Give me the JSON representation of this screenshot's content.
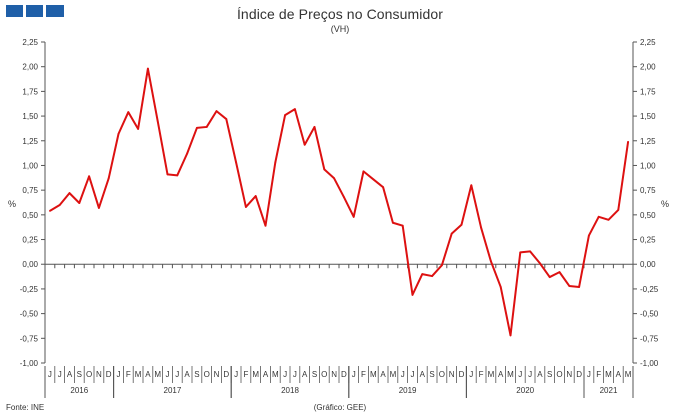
{
  "header": {
    "title": "Índice de Preços no Consumidor",
    "subtitle": "(VH)"
  },
  "footer": {
    "source": "Fonte: INE",
    "credit": "(Gráfico: GEE)"
  },
  "colors": {
    "line": "#dd1111",
    "logo": "#1f5fa8",
    "axis": "#555555"
  },
  "chart_data": {
    "type": "line",
    "title": "Índice de Preços no Consumidor",
    "subtitle": "(VH)",
    "ylabel": "%",
    "ylabel_right": "%",
    "ylim": [
      -1.0,
      2.25
    ],
    "ytick_step": 0.25,
    "yticks": [
      "-1,00",
      "-0,75",
      "-0,50",
      "-0,25",
      "0,00",
      "0,25",
      "0,50",
      "0,75",
      "1,00",
      "1,25",
      "1,50",
      "1,75",
      "2,00",
      "2,25"
    ],
    "grid": false,
    "legend": "none",
    "month_labels": [
      "J",
      "J",
      "A",
      "S",
      "O",
      "N",
      "D",
      "J",
      "F",
      "M",
      "A",
      "M",
      "J",
      "J",
      "A",
      "S",
      "O",
      "N",
      "D",
      "J",
      "F",
      "M",
      "A",
      "M",
      "J",
      "J",
      "A",
      "S",
      "O",
      "N",
      "D",
      "J",
      "F",
      "M",
      "A",
      "M",
      "J",
      "J",
      "A",
      "S",
      "O",
      "N",
      "D",
      "J",
      "F",
      "M",
      "A",
      "M",
      "J",
      "J",
      "A",
      "S",
      "O",
      "N",
      "D",
      "J",
      "F",
      "M",
      "A",
      "M"
    ],
    "years": [
      {
        "label": "2016",
        "start": 0,
        "end": 6
      },
      {
        "label": "2017",
        "start": 7,
        "end": 18
      },
      {
        "label": "2018",
        "start": 19,
        "end": 30
      },
      {
        "label": "2019",
        "start": 31,
        "end": 42
      },
      {
        "label": "2020",
        "start": 43,
        "end": 54
      },
      {
        "label": "2021",
        "start": 55,
        "end": 59
      }
    ],
    "x": [
      "2016-06",
      "2016-07",
      "2016-08",
      "2016-09",
      "2016-10",
      "2016-11",
      "2016-12",
      "2017-01",
      "2017-02",
      "2017-03",
      "2017-04",
      "2017-05",
      "2017-06",
      "2017-07",
      "2017-08",
      "2017-09",
      "2017-10",
      "2017-11",
      "2017-12",
      "2018-01",
      "2018-02",
      "2018-03",
      "2018-04",
      "2018-05",
      "2018-06",
      "2018-07",
      "2018-08",
      "2018-09",
      "2018-10",
      "2018-11",
      "2018-12",
      "2019-01",
      "2019-02",
      "2019-03",
      "2019-04",
      "2019-05",
      "2019-06",
      "2019-07",
      "2019-08",
      "2019-09",
      "2019-10",
      "2019-11",
      "2019-12",
      "2020-01",
      "2020-02",
      "2020-03",
      "2020-04",
      "2020-05",
      "2020-06",
      "2020-07",
      "2020-08",
      "2020-09",
      "2020-10",
      "2020-11",
      "2020-12",
      "2021-01",
      "2021-02",
      "2021-03",
      "2021-04",
      "2021-05"
    ],
    "series": [
      {
        "values": [
          0.54,
          0.6,
          0.72,
          0.62,
          0.89,
          0.57,
          0.87,
          1.32,
          1.54,
          1.37,
          1.98,
          1.45,
          0.91,
          0.9,
          1.12,
          1.38,
          1.39,
          1.55,
          1.47,
          1.03,
          0.58,
          0.69,
          0.39,
          1.03,
          1.51,
          1.57,
          1.21,
          1.39,
          0.96,
          0.87,
          0.68,
          0.48,
          0.94,
          0.86,
          0.78,
          0.42,
          0.39,
          -0.31,
          -0.1,
          -0.12,
          -0.01,
          0.31,
          0.4,
          0.8,
          0.37,
          0.03,
          -0.23,
          -0.72,
          0.12,
          0.13,
          0.01,
          -0.13,
          -0.08,
          -0.22,
          -0.23,
          0.29,
          0.48,
          0.45,
          0.55,
          1.24
        ]
      }
    ]
  }
}
